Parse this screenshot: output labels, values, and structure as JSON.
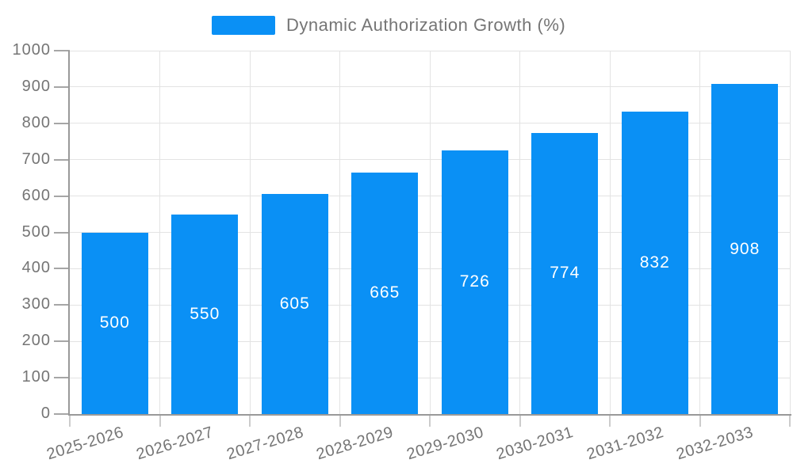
{
  "legend": {
    "label": "Dynamic Authorization Growth (%)"
  },
  "chart_data": {
    "type": "bar",
    "title": "Dynamic Authorization Growth (%)",
    "categories": [
      "2025-2026",
      "2026-2027",
      "2027-2028",
      "2028-2029",
      "2029-2030",
      "2030-2031",
      "2031-2032",
      "2032-2033"
    ],
    "series": [
      {
        "name": "Dynamic Authorization Growth (%)",
        "values": [
          500,
          550,
          605,
          665,
          726,
          774,
          832,
          908
        ]
      }
    ],
    "values": [
      500,
      550,
      605,
      665,
      726,
      774,
      832,
      908
    ],
    "bar_value_labels": [
      "500",
      "550",
      "605",
      "665",
      "726",
      "774",
      "832",
      "908"
    ],
    "xlabel": "",
    "ylabel": "",
    "ylim": [
      0,
      1000
    ],
    "y_ticks": [
      0,
      100,
      200,
      300,
      400,
      500,
      600,
      700,
      800,
      900,
      1000
    ],
    "grid": true,
    "legend_position": "top",
    "x_label_rotation_deg": -17
  },
  "colors": {
    "bar": "#0A90F5",
    "bar_label": "#FFFFFF",
    "axis_text": "#757575",
    "axis_line": "#999999",
    "gridline": "#E3E3E3",
    "background": "#FFFFFF"
  }
}
